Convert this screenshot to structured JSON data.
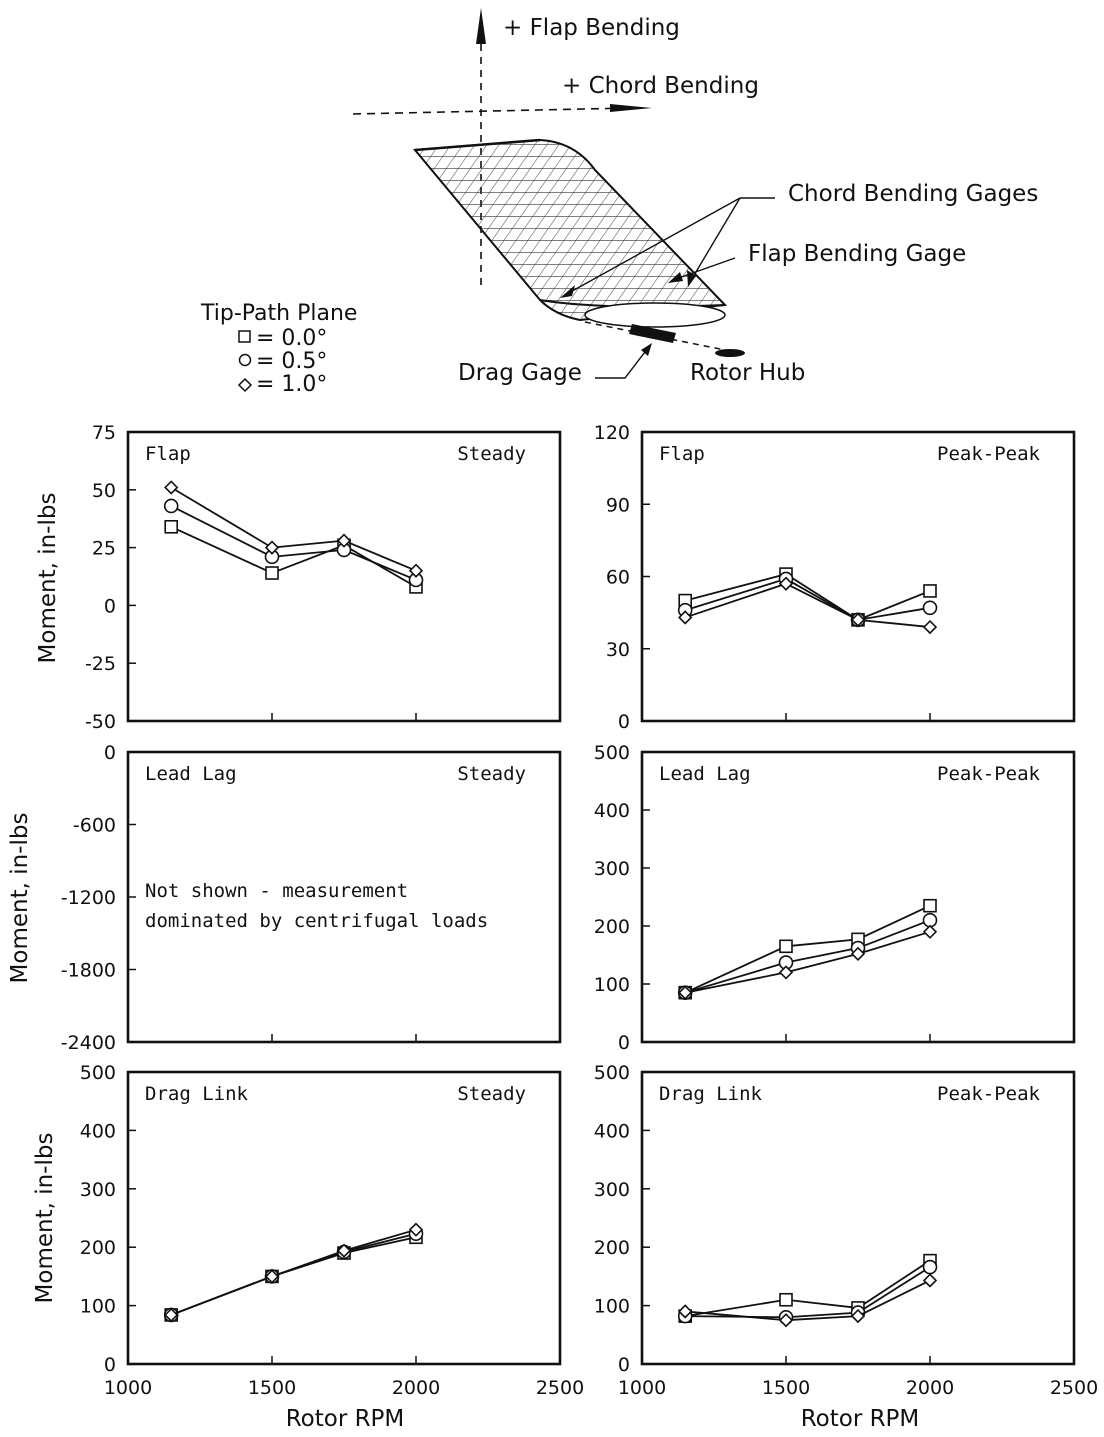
{
  "diagram": {
    "plus_flap_bending": "+ Flap Bending",
    "plus_chord_bending": "+ Chord Bending",
    "chord_bending_gages": "Chord Bending Gages",
    "flap_bending_gage": "Flap Bending Gage",
    "drag_gage": "Drag Gage",
    "rotor_hub": "Rotor Hub"
  },
  "legend": {
    "title": "Tip-Path Plane",
    "entries": [
      {
        "marker": "square",
        "text": "= 0.0°"
      },
      {
        "marker": "circle",
        "text": "= 0.5°"
      },
      {
        "marker": "diamond",
        "text": "= 1.0°"
      }
    ]
  },
  "xlabel": "Rotor RPM",
  "ylabel": "Moment, in-lbs",
  "chart_data": [
    {
      "type": "line",
      "label_left": "Flap",
      "label_right": "Steady",
      "xlim": [
        1000,
        2500
      ],
      "xticks": [
        1000,
        1500,
        2000,
        2500
      ],
      "ylim": [
        -50,
        75
      ],
      "yticks": [
        -50,
        -25,
        0,
        25,
        50,
        75
      ],
      "x": [
        1150,
        1500,
        1750,
        2000
      ],
      "series": [
        {
          "marker": "square",
          "values": [
            34,
            14,
            26,
            8
          ]
        },
        {
          "marker": "circle",
          "values": [
            43,
            21,
            24,
            11
          ]
        },
        {
          "marker": "diamond",
          "values": [
            51,
            25,
            28,
            15
          ]
        }
      ]
    },
    {
      "type": "line",
      "label_left": "Flap",
      "label_right": "Peak-Peak",
      "xlim": [
        1000,
        2500
      ],
      "xticks": [
        1000,
        1500,
        2000,
        2500
      ],
      "ylim": [
        0,
        120
      ],
      "yticks": [
        0,
        30,
        60,
        90,
        120
      ],
      "x": [
        1150,
        1500,
        1750,
        2000
      ],
      "series": [
        {
          "marker": "square",
          "values": [
            50,
            61,
            42,
            54
          ]
        },
        {
          "marker": "circle",
          "values": [
            46,
            59,
            42,
            47
          ]
        },
        {
          "marker": "diamond",
          "values": [
            43,
            57,
            42,
            39
          ]
        }
      ]
    },
    {
      "type": "line",
      "label_left": "Lead Lag",
      "label_right": "Steady",
      "note": [
        "Not shown - measurement",
        "dominated by centrifugal loads"
      ],
      "xlim": [
        1000,
        2500
      ],
      "xticks": [
        1000,
        1500,
        2000,
        2500
      ],
      "ylim": [
        -2400,
        0
      ],
      "yticks": [
        -2400,
        -1800,
        -1200,
        -600,
        0
      ],
      "x": [],
      "series": []
    },
    {
      "type": "line",
      "label_left": "Lead Lag",
      "label_right": "Peak-Peak",
      "xlim": [
        1000,
        2500
      ],
      "xticks": [
        1000,
        1500,
        2000,
        2500
      ],
      "ylim": [
        0,
        500
      ],
      "yticks": [
        0,
        100,
        200,
        300,
        400,
        500
      ],
      "x": [
        1150,
        1500,
        1750,
        2000
      ],
      "series": [
        {
          "marker": "square",
          "values": [
            85,
            165,
            177,
            235
          ]
        },
        {
          "marker": "circle",
          "values": [
            85,
            137,
            162,
            210
          ]
        },
        {
          "marker": "diamond",
          "values": [
            85,
            120,
            152,
            190
          ]
        }
      ]
    },
    {
      "type": "line",
      "label_left": "Drag Link",
      "label_right": "Steady",
      "xlim": [
        1000,
        2500
      ],
      "xticks": [
        1000,
        1500,
        2000,
        2500
      ],
      "ylim": [
        0,
        500
      ],
      "yticks": [
        0,
        100,
        200,
        300,
        400,
        500
      ],
      "x": [
        1150,
        1500,
        1750,
        2000
      ],
      "series": [
        {
          "marker": "square",
          "values": [
            84,
            150,
            190,
            217
          ]
        },
        {
          "marker": "circle",
          "values": [
            84,
            150,
            192,
            223
          ]
        },
        {
          "marker": "diamond",
          "values": [
            84,
            150,
            194,
            230
          ]
        }
      ]
    },
    {
      "type": "line",
      "label_left": "Drag Link",
      "label_right": "Peak-Peak",
      "xlim": [
        1000,
        2500
      ],
      "xticks": [
        1000,
        1500,
        2000,
        2500
      ],
      "ylim": [
        0,
        500
      ],
      "yticks": [
        0,
        100,
        200,
        300,
        400,
        500
      ],
      "x": [
        1150,
        1500,
        1750,
        2000
      ],
      "series": [
        {
          "marker": "square",
          "values": [
            82,
            110,
            96,
            177
          ]
        },
        {
          "marker": "circle",
          "values": [
            82,
            80,
            88,
            166
          ]
        },
        {
          "marker": "diamond",
          "values": [
            90,
            75,
            82,
            143
          ]
        }
      ]
    }
  ]
}
